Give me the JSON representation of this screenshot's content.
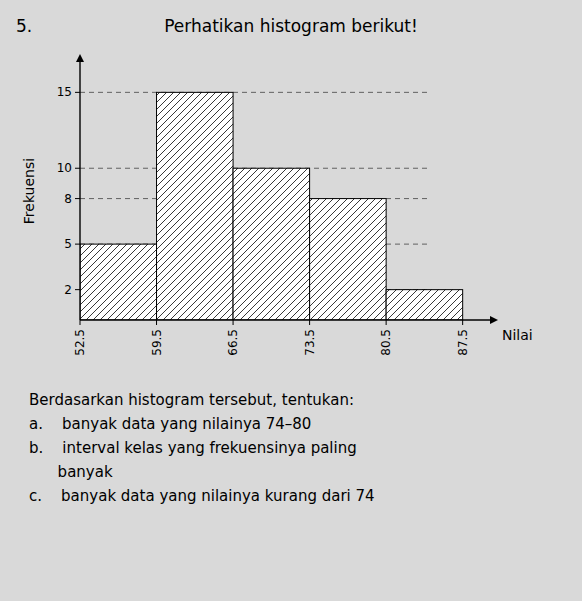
{
  "chart_data": {
    "type": "histogram",
    "title": "Perhatikan histogram berikut!",
    "x_label": "Nilai",
    "y_label": "Frekuensi",
    "bins": [
      52.5,
      59.5,
      66.5,
      73.5,
      80.5,
      87.5
    ],
    "values": [
      5,
      15,
      10,
      8,
      2
    ],
    "color": "white",
    "xlim": [
      52.5,
      90
    ],
    "xticks": [
      52.5,
      59.5,
      66.5,
      73.5,
      80.5,
      87.5
    ],
    "ylim": [
      0,
      17
    ],
    "yticks": [
      2,
      5,
      8,
      10,
      15
    ],
    "grid": true,
    "annotations": [
      "5.",
      "Berdasarkan histogram tersebut, tentukan:",
      "a.    banyak data yang nilainya 74–80",
      "b.    interval kelas yang frekuensinya paling",
      "      banyak",
      "c.    banyak data yang nilainya kurang dari 74"
    ]
  }
}
